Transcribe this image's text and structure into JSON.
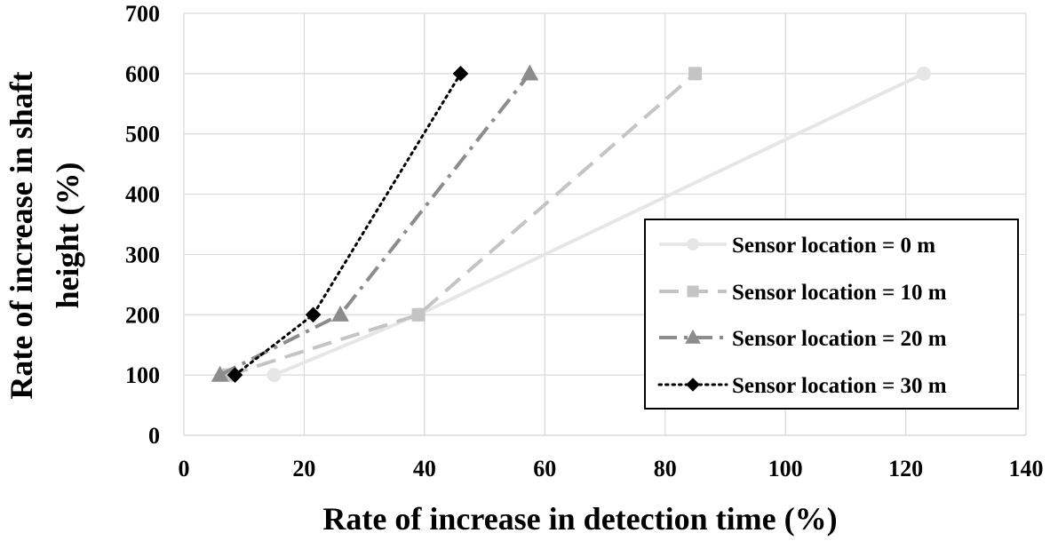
{
  "chart_data": {
    "type": "line",
    "xlabel": "Rate of increase in detection time (%)",
    "ylabel_lines": [
      "Rate of increase in shaft",
      "height (%)"
    ],
    "xlim": [
      0,
      140
    ],
    "ylim": [
      0,
      700
    ],
    "xticks": [
      "0",
      "20",
      "40",
      "60",
      "80",
      "100",
      "120",
      "140"
    ],
    "yticks": [
      "0",
      "100",
      "200",
      "300",
      "400",
      "500",
      "600",
      "700"
    ],
    "grid": true,
    "legend_position": "right",
    "series": [
      {
        "name": "Sensor location = 0 m",
        "color": "#e6e6e6",
        "dash": "solid",
        "marker": "circle",
        "x": [
          15,
          39,
          123
        ],
        "y": [
          100,
          200,
          600
        ]
      },
      {
        "name": "Sensor location = 10 m",
        "color": "#c4c4c4",
        "dash": "dashed",
        "marker": "square",
        "x": [
          7.5,
          39,
          85
        ],
        "y": [
          100,
          200,
          600
        ]
      },
      {
        "name": "Sensor location = 20 m",
        "color": "#8c8c8c",
        "dash": "dashdot",
        "marker": "triangle",
        "x": [
          6,
          26,
          57.5
        ],
        "y": [
          100,
          200,
          600
        ]
      },
      {
        "name": "Sensor location = 30 m",
        "color": "#000000",
        "dash": "dotted",
        "marker": "diamond",
        "x": [
          8.5,
          21.5,
          46
        ],
        "y": [
          100,
          200,
          600
        ]
      }
    ]
  }
}
